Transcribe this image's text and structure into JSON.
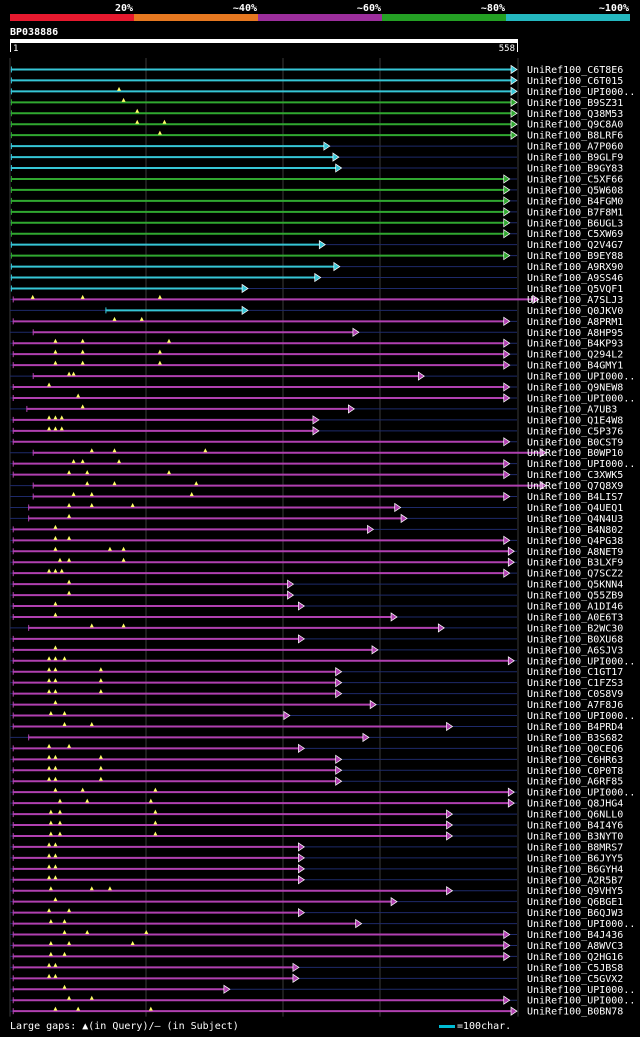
{
  "chart_data": {
    "type": "bar",
    "title": "BP038886",
    "query_start": "1",
    "query_end": "558",
    "query_length": 558,
    "scale_labels": [
      "20%",
      "~40%",
      "~60%",
      "~80%",
      "~100%"
    ],
    "scale_colors": [
      "#e6192e",
      "#e67820",
      "#9c2e9c",
      "#24a024",
      "#24b8c0"
    ],
    "hit_colors": {
      "cyan": "#36c6d6",
      "green": "#30a830",
      "magenta": "#b040b0"
    },
    "footer_gaps": "Large gaps: ▲(in Query)/– (in Subject)",
    "footer_scale": "=100char.",
    "hits": [
      {
        "name": "UniRef100_C6T8E6",
        "start": 1,
        "end": 558,
        "color": "cyan",
        "gaps": []
      },
      {
        "name": "UniRef100_C6T015",
        "start": 1,
        "end": 558,
        "color": "cyan",
        "gaps": []
      },
      {
        "name": "UniRef100_UPI000..",
        "start": 1,
        "end": 558,
        "color": "cyan",
        "gaps": [
          120
        ]
      },
      {
        "name": "UniRef100_B9SZ31",
        "start": 1,
        "end": 558,
        "color": "green",
        "gaps": [
          125
        ]
      },
      {
        "name": "UniRef100_Q38M53",
        "start": 1,
        "end": 558,
        "color": "green",
        "gaps": [
          140
        ]
      },
      {
        "name": "UniRef100_Q9C8A0",
        "start": 1,
        "end": 558,
        "color": "green",
        "gaps": [
          140,
          170
        ]
      },
      {
        "name": "UniRef100_B8LRF6",
        "start": 1,
        "end": 558,
        "color": "green",
        "gaps": [
          165
        ]
      },
      {
        "name": "UniRef100_A7P060",
        "start": 1,
        "end": 352,
        "color": "cyan",
        "gaps": []
      },
      {
        "name": "UniRef100_B9GLF9",
        "start": 1,
        "end": 362,
        "color": "cyan",
        "gaps": []
      },
      {
        "name": "UniRef100_B9GY83",
        "start": 1,
        "end": 365,
        "color": "cyan",
        "gaps": []
      },
      {
        "name": "UniRef100_C5XF66",
        "start": 1,
        "end": 550,
        "color": "green",
        "gaps": []
      },
      {
        "name": "UniRef100_Q5W608",
        "start": 1,
        "end": 550,
        "color": "green",
        "gaps": []
      },
      {
        "name": "UniRef100_B4FGM0",
        "start": 1,
        "end": 550,
        "color": "green",
        "gaps": []
      },
      {
        "name": "UniRef100_B7F8M1",
        "start": 1,
        "end": 550,
        "color": "green",
        "gaps": []
      },
      {
        "name": "UniRef100_B6UGL3",
        "start": 1,
        "end": 550,
        "color": "green",
        "gaps": []
      },
      {
        "name": "UniRef100_C5XW69",
        "start": 1,
        "end": 550,
        "color": "green",
        "gaps": []
      },
      {
        "name": "UniRef100_Q2V4G7",
        "start": 1,
        "end": 347,
        "color": "cyan",
        "gaps": []
      },
      {
        "name": "UniRef100_B9EY88",
        "start": 1,
        "end": 550,
        "color": "green",
        "gaps": []
      },
      {
        "name": "UniRef100_A9RX90",
        "start": 1,
        "end": 363,
        "color": "cyan",
        "gaps": []
      },
      {
        "name": "UniRef100_A9SS46",
        "start": 1,
        "end": 342,
        "color": "cyan",
        "gaps": []
      },
      {
        "name": "UniRef100_Q5VQF1",
        "start": 1,
        "end": 262,
        "color": "cyan",
        "gaps": []
      },
      {
        "name": "UniRef100_A7SLJ3",
        "start": 3,
        "end": 582,
        "color": "magenta",
        "gaps": [
          25,
          80,
          165
        ]
      },
      {
        "name": "UniRef100_Q0JKV0",
        "start": 105,
        "end": 262,
        "color": "cyan",
        "gaps": []
      },
      {
        "name": "UniRef100_A8PRM1",
        "start": 3,
        "end": 550,
        "color": "magenta",
        "gaps": [
          115,
          145
        ]
      },
      {
        "name": "UniRef100_A8HP95",
        "start": 25,
        "end": 384,
        "color": "magenta",
        "gaps": []
      },
      {
        "name": "UniRef100_B4KP93",
        "start": 3,
        "end": 550,
        "color": "magenta",
        "gaps": [
          50,
          80,
          175
        ]
      },
      {
        "name": "UniRef100_Q294L2",
        "start": 3,
        "end": 550,
        "color": "magenta",
        "gaps": [
          50,
          80,
          165
        ]
      },
      {
        "name": "UniRef100_B4GMY1",
        "start": 3,
        "end": 550,
        "color": "magenta",
        "gaps": [
          50,
          80,
          165
        ]
      },
      {
        "name": "UniRef100_UPI000..",
        "start": 25,
        "end": 456,
        "color": "magenta",
        "gaps": [
          65,
          70
        ]
      },
      {
        "name": "UniRef100_Q9NEW8",
        "start": 3,
        "end": 550,
        "color": "magenta",
        "gaps": [
          43
        ]
      },
      {
        "name": "UniRef100_UPI000..",
        "start": 3,
        "end": 550,
        "color": "magenta",
        "gaps": [
          75
        ]
      },
      {
        "name": "UniRef100_A7UB3",
        "start": 18,
        "end": 379,
        "color": "magenta",
        "gaps": [
          80
        ]
      },
      {
        "name": "UniRef100_Q1E4W8",
        "start": 3,
        "end": 340,
        "color": "magenta",
        "gaps": [
          43,
          50,
          57
        ]
      },
      {
        "name": "UniRef100_C5P376",
        "start": 3,
        "end": 340,
        "color": "magenta",
        "gaps": [
          43,
          50,
          57
        ]
      },
      {
        "name": "UniRef100_B0CST9",
        "start": 3,
        "end": 550,
        "color": "magenta",
        "gaps": []
      },
      {
        "name": "UniRef100_B0WP10",
        "start": 25,
        "end": 590,
        "color": "magenta",
        "gaps": [
          90,
          115,
          215
        ]
      },
      {
        "name": "UniRef100_UPI000..",
        "start": 3,
        "end": 550,
        "color": "magenta",
        "gaps": [
          70,
          80,
          120
        ]
      },
      {
        "name": "UniRef100_C3XWK5",
        "start": 3,
        "end": 550,
        "color": "magenta",
        "gaps": [
          65,
          85,
          175
        ]
      },
      {
        "name": "UniRef100_Q7Q8X9",
        "start": 25,
        "end": 590,
        "color": "magenta",
        "gaps": [
          85,
          115,
          205
        ]
      },
      {
        "name": "UniRef100_B4LIS7",
        "start": 25,
        "end": 550,
        "color": "magenta",
        "gaps": [
          70,
          90,
          200
        ]
      },
      {
        "name": "UniRef100_Q4UEQ1",
        "start": 20,
        "end": 430,
        "color": "magenta",
        "gaps": [
          65,
          90,
          135
        ]
      },
      {
        "name": "UniRef100_Q4N4U3",
        "start": 20,
        "end": 437,
        "color": "magenta",
        "gaps": [
          65
        ]
      },
      {
        "name": "UniRef100_B4N802",
        "start": 3,
        "end": 400,
        "color": "magenta",
        "gaps": [
          50
        ]
      },
      {
        "name": "UniRef100_Q4PG38",
        "start": 3,
        "end": 550,
        "color": "magenta",
        "gaps": [
          50,
          65
        ]
      },
      {
        "name": "UniRef100_A8NET9",
        "start": 3,
        "end": 555,
        "color": "magenta",
        "gaps": [
          50,
          110,
          125
        ]
      },
      {
        "name": "UniRef100_B3LXF9",
        "start": 3,
        "end": 555,
        "color": "magenta",
        "gaps": [
          55,
          65,
          125
        ]
      },
      {
        "name": "UniRef100_Q7SCZ2",
        "start": 3,
        "end": 550,
        "color": "magenta",
        "gaps": [
          43,
          50,
          57
        ]
      },
      {
        "name": "UniRef100_Q5KNN4",
        "start": 3,
        "end": 312,
        "color": "magenta",
        "gaps": [
          65
        ]
      },
      {
        "name": "UniRef100_Q55ZB9",
        "start": 3,
        "end": 312,
        "color": "magenta",
        "gaps": [
          65
        ]
      },
      {
        "name": "UniRef100_A1DI46",
        "start": 3,
        "end": 324,
        "color": "magenta",
        "gaps": [
          50
        ]
      },
      {
        "name": "UniRef100_A0E6T3",
        "start": 3,
        "end": 426,
        "color": "magenta",
        "gaps": [
          50
        ]
      },
      {
        "name": "UniRef100_B2WC30",
        "start": 20,
        "end": 478,
        "color": "magenta",
        "gaps": [
          90,
          125
        ]
      },
      {
        "name": "UniRef100_B0XU68",
        "start": 3,
        "end": 324,
        "color": "magenta",
        "gaps": []
      },
      {
        "name": "UniRef100_A6SJV3",
        "start": 3,
        "end": 405,
        "color": "magenta",
        "gaps": [
          50
        ]
      },
      {
        "name": "UniRef100_UPI000..",
        "start": 3,
        "end": 555,
        "color": "magenta",
        "gaps": [
          43,
          50,
          60
        ]
      },
      {
        "name": "UniRef100_C1GT17",
        "start": 3,
        "end": 365,
        "color": "magenta",
        "gaps": [
          43,
          50,
          100
        ]
      },
      {
        "name": "UniRef100_C1FZS3",
        "start": 3,
        "end": 365,
        "color": "magenta",
        "gaps": [
          43,
          50,
          100
        ]
      },
      {
        "name": "UniRef100_C0S8V9",
        "start": 3,
        "end": 365,
        "color": "magenta",
        "gaps": [
          43,
          50,
          100
        ]
      },
      {
        "name": "UniRef100_A7F8J6",
        "start": 3,
        "end": 403,
        "color": "magenta",
        "gaps": [
          50
        ]
      },
      {
        "name": "UniRef100_UPI000..",
        "start": 3,
        "end": 308,
        "color": "magenta",
        "gaps": [
          45,
          60
        ]
      },
      {
        "name": "UniRef100_B4PRD4",
        "start": 3,
        "end": 487,
        "color": "magenta",
        "gaps": [
          60,
          90
        ]
      },
      {
        "name": "UniRef100_B3S682",
        "start": 20,
        "end": 395,
        "color": "magenta",
        "gaps": []
      },
      {
        "name": "UniRef100_Q0CEQ6",
        "start": 3,
        "end": 324,
        "color": "magenta",
        "gaps": [
          43,
          65
        ]
      },
      {
        "name": "UniRef100_C6HR63",
        "start": 3,
        "end": 365,
        "color": "magenta",
        "gaps": [
          43,
          50,
          100
        ]
      },
      {
        "name": "UniRef100_C0P0T8",
        "start": 3,
        "end": 365,
        "color": "magenta",
        "gaps": [
          43,
          50,
          100
        ]
      },
      {
        "name": "UniRef100_A6RF85",
        "start": 3,
        "end": 365,
        "color": "magenta",
        "gaps": [
          43,
          50,
          100
        ]
      },
      {
        "name": "UniRef100_UPI000..",
        "start": 3,
        "end": 555,
        "color": "magenta",
        "gaps": [
          50,
          80,
          160
        ]
      },
      {
        "name": "UniRef100_Q8JHG4",
        "start": 3,
        "end": 555,
        "color": "magenta",
        "gaps": [
          55,
          85,
          155
        ]
      },
      {
        "name": "UniRef100_Q6NLL0",
        "start": 3,
        "end": 487,
        "color": "magenta",
        "gaps": [
          45,
          55,
          160
        ]
      },
      {
        "name": "UniRef100_B4I4Y6",
        "start": 3,
        "end": 487,
        "color": "magenta",
        "gaps": [
          45,
          55,
          160
        ]
      },
      {
        "name": "UniRef100_B3NYT0",
        "start": 3,
        "end": 487,
        "color": "magenta",
        "gaps": [
          45,
          55,
          160
        ]
      },
      {
        "name": "UniRef100_B8MRS7",
        "start": 3,
        "end": 324,
        "color": "magenta",
        "gaps": [
          43,
          50
        ]
      },
      {
        "name": "UniRef100_B6JYY5",
        "start": 3,
        "end": 324,
        "color": "magenta",
        "gaps": [
          43,
          50
        ]
      },
      {
        "name": "UniRef100_B6GYH4",
        "start": 3,
        "end": 324,
        "color": "magenta",
        "gaps": [
          43,
          50
        ]
      },
      {
        "name": "UniRef100_A2R5B7",
        "start": 3,
        "end": 324,
        "color": "magenta",
        "gaps": [
          43,
          50
        ]
      },
      {
        "name": "UniRef100_Q9VHY5",
        "start": 3,
        "end": 487,
        "color": "magenta",
        "gaps": [
          45,
          90,
          110
        ]
      },
      {
        "name": "UniRef100_Q6BGE1",
        "start": 3,
        "end": 426,
        "color": "magenta",
        "gaps": [
          50
        ]
      },
      {
        "name": "UniRef100_B6QJW3",
        "start": 3,
        "end": 324,
        "color": "magenta",
        "gaps": [
          43,
          65
        ]
      },
      {
        "name": "UniRef100_UPI000..",
        "start": 3,
        "end": 387,
        "color": "magenta",
        "gaps": [
          45,
          60
        ]
      },
      {
        "name": "UniRef100_B4J436",
        "start": 3,
        "end": 550,
        "color": "magenta",
        "gaps": [
          60,
          85,
          150
        ]
      },
      {
        "name": "UniRef100_A8WVC3",
        "start": 3,
        "end": 550,
        "color": "magenta",
        "gaps": [
          45,
          65,
          135
        ]
      },
      {
        "name": "UniRef100_Q2HG16",
        "start": 3,
        "end": 550,
        "color": "magenta",
        "gaps": [
          45,
          60
        ]
      },
      {
        "name": "UniRef100_C5JBS8",
        "start": 3,
        "end": 318,
        "color": "magenta",
        "gaps": [
          43,
          50
        ]
      },
      {
        "name": "UniRef100_C5GVX2",
        "start": 3,
        "end": 318,
        "color": "magenta",
        "gaps": [
          43,
          50
        ]
      },
      {
        "name": "UniRef100_UPI000..",
        "start": 3,
        "end": 242,
        "color": "magenta",
        "gaps": [
          60
        ]
      },
      {
        "name": "UniRef100_UPI000..",
        "start": 3,
        "end": 550,
        "color": "magenta",
        "gaps": [
          65,
          90
        ]
      },
      {
        "name": "UniRef100_B0BN78",
        "start": 3,
        "end": 558,
        "color": "magenta",
        "gaps": [
          50,
          75,
          155
        ]
      }
    ]
  }
}
